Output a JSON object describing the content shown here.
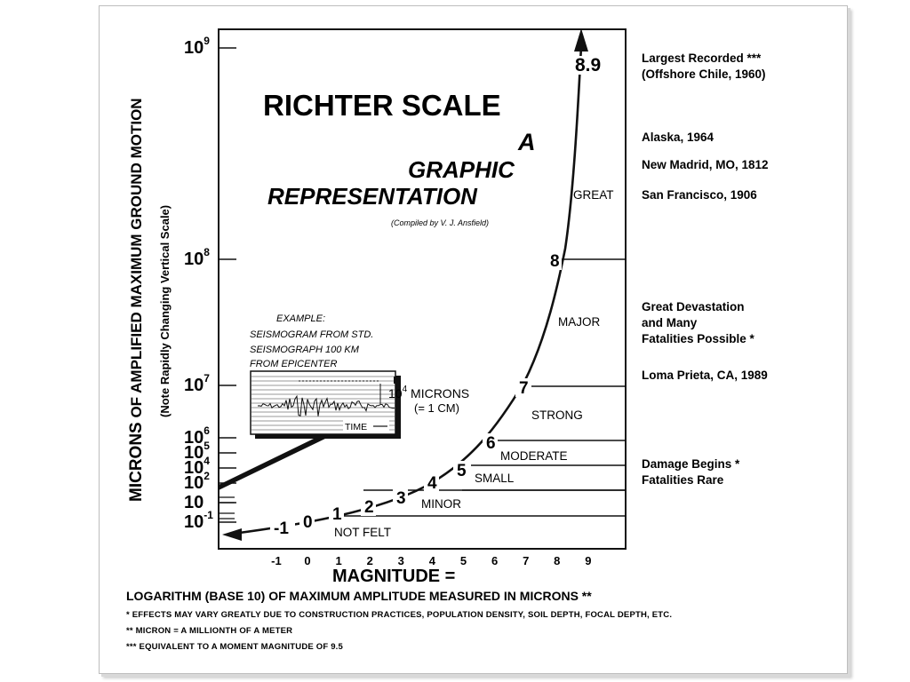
{
  "chart_data": {
    "type": "line",
    "title": "RICHTER SCALE",
    "subtitle_lines": [
      "A",
      "GRAPHIC",
      "REPRESENTATION"
    ],
    "credit": "(Compiled by V. J. Ansfield)",
    "xlabel": "MAGNITUDE =",
    "xlabel_sub": "LOGARITHM (BASE 10) OF MAXIMUM AMPLITUDE MEASURED IN MICRONS **",
    "ylabel_main": "MICRONS",
    "ylabel_rest": " OF AMPLIFIED MAXIMUM GROUND MOTION",
    "ylabel_note": "(Note Rapidly Changing Vertical Scale)",
    "x_ticks": [
      "-1",
      "0",
      "1",
      "2",
      "3",
      "4",
      "5",
      "6",
      "7",
      "8",
      "9"
    ],
    "y_ticks": [
      {
        "base": "10",
        "exp": "9"
      },
      {
        "base": "10",
        "exp": "8"
      },
      {
        "base": "10",
        "exp": "7"
      },
      {
        "base": "10",
        "exp": "6"
      },
      {
        "base": "10",
        "exp": "5"
      },
      {
        "base": "10",
        "exp": "4"
      },
      {
        "base": "10",
        "exp": "2"
      },
      {
        "base": "10",
        "exp": ""
      },
      {
        "base": "10",
        "exp": "-1"
      }
    ],
    "curve_labels": [
      "-1",
      "0",
      "1",
      "2",
      "3",
      "4",
      "5",
      "6",
      "7",
      "8",
      "8.9"
    ],
    "categories": [
      "NOT FELT",
      "MINOR",
      "SMALL",
      "MODERATE",
      "STRONG",
      "MAJOR",
      "GREAT"
    ],
    "annotations": [
      "Largest Recorded  ***",
      "(Offshore Chile, 1960)",
      "Alaska, 1964",
      "New Madrid, MO, 1812",
      "San Francisco, 1906",
      "Great Devastation",
      "and Many",
      "Fatalities Possible  *",
      "Loma Prieta, CA,  1989",
      "Damage Begins  *",
      "Fatalities Rare"
    ],
    "example": {
      "lines": [
        "EXAMPLE:",
        "SEISMOGRAM FROM STD.",
        "SEISMOGRAPH 100 KM",
        "FROM EPICENTER"
      ],
      "amplitude_base": "10",
      "amplitude_exp": "4",
      "amplitude_unit": " MICRONS",
      "amplitude_equiv": "(= 1 CM)",
      "time_label": "TIME"
    },
    "footnotes": [
      "* EFFECTS MAY VARY GREATLY DUE TO CONSTRUCTION PRACTICES, POPULATION DENSITY, SOIL DEPTH, FOCAL DEPTH, ETC.",
      "** MICRON = A MILLIONTH OF A METER",
      "*** EQUIVALENT TO A MOMENT MAGNITUDE OF 9.5"
    ],
    "grid": false
  }
}
